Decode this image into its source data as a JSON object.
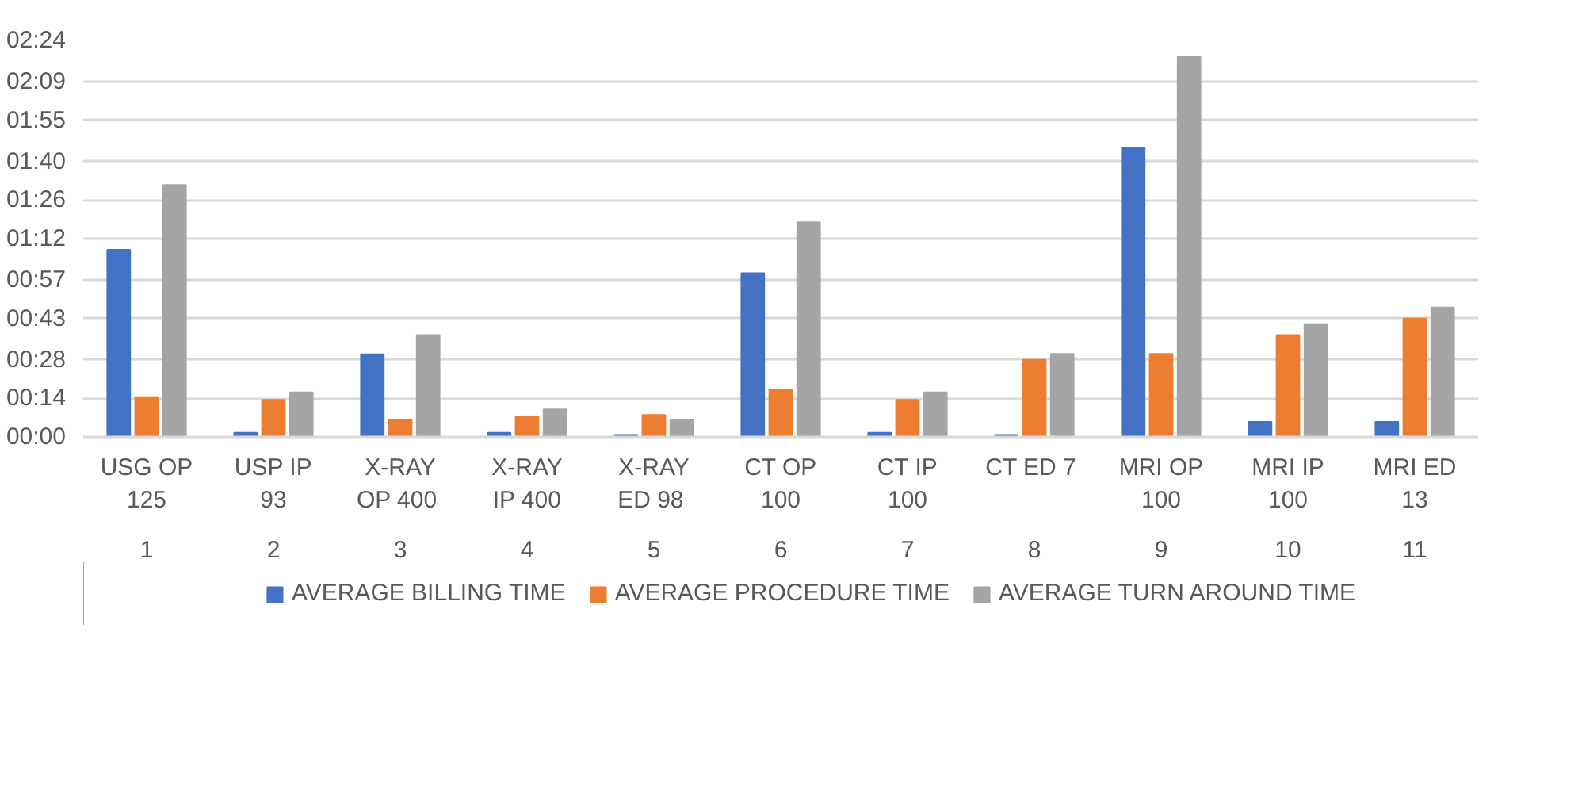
{
  "chart_data": {
    "type": "bar",
    "categories": [
      "USG OP\n125\n1",
      "USP IP\n93\n2",
      "X-RAY\nOP  400\n3",
      "X-RAY\nIP 400\n4",
      "X-RAY\nED  98\n5",
      "CT OP\n100\n6",
      "CT IP\n100\n7",
      "CT ED  7\n8",
      "MRI OP\n100\n9",
      "MRI IP\n100\n10",
      "MRI ED\n13\n11"
    ],
    "series": [
      {
        "name": "AVERAGE BILLING TIME",
        "color": "#4472c4",
        "values": [
          68,
          1.5,
          30,
          1.5,
          0.7,
          59.5,
          1.5,
          0.7,
          105,
          5.5,
          5.5
        ]
      },
      {
        "name": "AVERAGE PROCEDURE TIME",
        "color": "#ed7d31",
        "values": [
          14.5,
          13.5,
          6.3,
          7.3,
          8,
          17.2,
          13.5,
          28,
          30.2,
          37,
          43
        ]
      },
      {
        "name": "AVERAGE TURN AROUND TIME",
        "color": "#a5a5a5",
        "values": [
          91.5,
          16.2,
          37,
          10,
          6.3,
          78,
          16.2,
          30.2,
          138,
          41,
          47
        ]
      }
    ],
    "ylim": [
      0,
      144
    ],
    "yticks": [
      {
        "value": 0,
        "label": "00:00"
      },
      {
        "value": 14,
        "label": "00:14"
      },
      {
        "value": 28,
        "label": "00:28"
      },
      {
        "value": 43,
        "label": "00:43"
      },
      {
        "value": 57,
        "label": "00:57"
      },
      {
        "value": 72,
        "label": "01:12"
      },
      {
        "value": 86,
        "label": "01:26"
      },
      {
        "value": 100,
        "label": "01:40"
      },
      {
        "value": 115,
        "label": "01:55"
      },
      {
        "value": 129,
        "label": "02:09"
      },
      {
        "value": 144,
        "label": "02:24"
      }
    ],
    "grid": "y",
    "legend": "bottom"
  }
}
